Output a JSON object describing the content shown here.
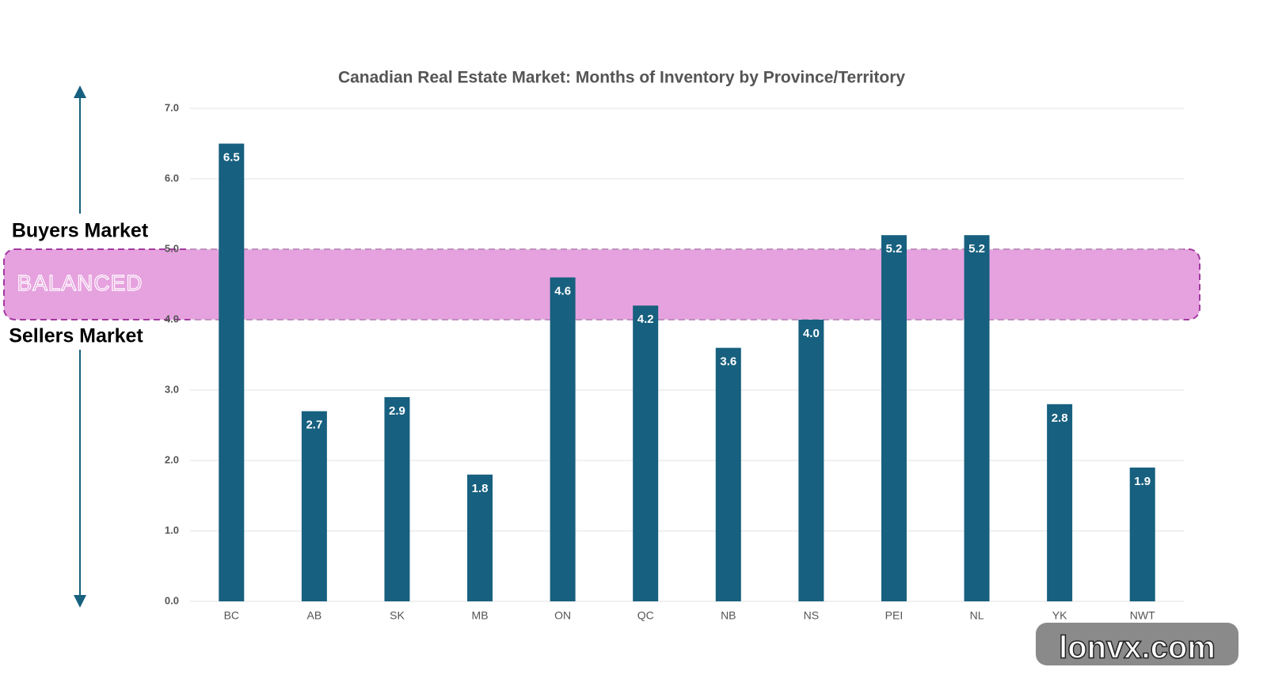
{
  "chart_data": {
    "type": "bar",
    "title": "Canadian Real Estate Market: Months of Inventory by Province/Territory",
    "categories": [
      "BC",
      "AB",
      "SK",
      "MB",
      "ON",
      "QC",
      "NB",
      "NS",
      "PEI",
      "NL",
      "YK",
      "NWT"
    ],
    "values": [
      6.5,
      2.7,
      2.9,
      1.8,
      4.6,
      4.2,
      3.6,
      4.0,
      5.2,
      5.2,
      2.8,
      1.9
    ],
    "value_labels": [
      "6.5",
      "2.7",
      "2.9",
      "1.8",
      "4.6",
      "4.2",
      "3.6",
      "4.0",
      "5.2",
      "5.2",
      "2.8",
      "1.9"
    ],
    "color": "#17607f",
    "ylim": [
      0,
      7
    ],
    "yticks": [
      {
        "value": 0,
        "label": "0.0"
      },
      {
        "value": 1,
        "label": "1.0"
      },
      {
        "value": 2,
        "label": "2.0"
      },
      {
        "value": 3,
        "label": "3.0"
      },
      {
        "value": 4,
        "label": "4.0"
      },
      {
        "value": 5,
        "label": "5.0"
      },
      {
        "value": 6,
        "label": "6.0"
      },
      {
        "value": 7,
        "label": "7.0"
      }
    ],
    "grid": true,
    "balanced_band": {
      "label": "BALANCED",
      "range": [
        4,
        5
      ],
      "color": "#e59ddd"
    },
    "annotations": {
      "upper": "Buyers Market",
      "lower": "Sellers Market"
    },
    "watermark": "lonvx.com"
  }
}
